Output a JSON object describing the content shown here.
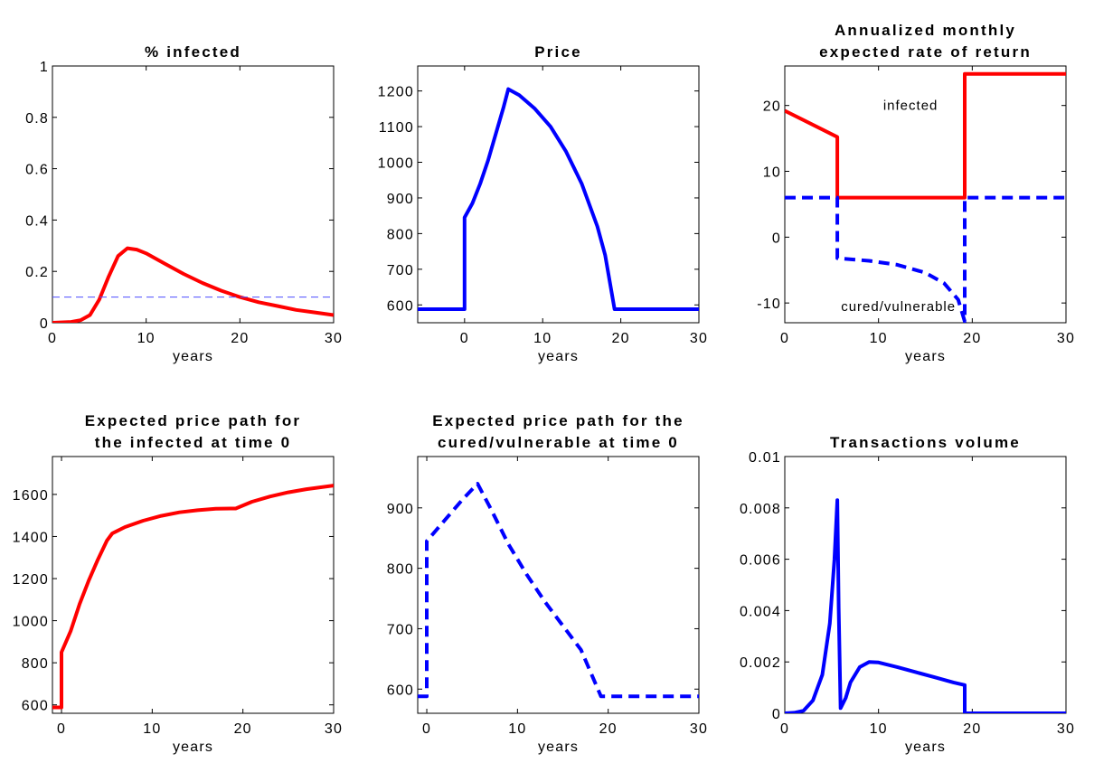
{
  "chart_data": [
    {
      "type": "line",
      "title": [
        "% infected"
      ],
      "xlabel": "years",
      "ylabel": "",
      "xlim": [
        0,
        30
      ],
      "ylim": [
        0,
        1
      ],
      "xticks": [
        "0",
        "10",
        "20",
        "30"
      ],
      "yticks": [
        "0",
        "0.2",
        "0.4",
        "0.6",
        "0.8",
        "1"
      ],
      "xtick_values": [
        0,
        10,
        20,
        30
      ],
      "ytick_values": [
        0,
        0.2,
        0.4,
        0.6,
        0.8,
        1
      ],
      "series": [
        {
          "color": "#ff0000",
          "style": "solid",
          "width": "thick",
          "points": [
            [
              0,
              0
            ],
            [
              2,
              0.003
            ],
            [
              3,
              0.01
            ],
            [
              4,
              0.03
            ],
            [
              5,
              0.09
            ],
            [
              6,
              0.18
            ],
            [
              7,
              0.26
            ],
            [
              8,
              0.29
            ],
            [
              9,
              0.285
            ],
            [
              10,
              0.27
            ],
            [
              12,
              0.23
            ],
            [
              14,
              0.19
            ],
            [
              16,
              0.155
            ],
            [
              18,
              0.125
            ],
            [
              20,
              0.1
            ],
            [
              22,
              0.08
            ],
            [
              24,
              0.065
            ],
            [
              26,
              0.05
            ],
            [
              28,
              0.04
            ],
            [
              30,
              0.03
            ]
          ]
        },
        {
          "color": "#4d4dff",
          "style": "dashed",
          "width": "thin",
          "points": [
            [
              0,
              0.1
            ],
            [
              30,
              0.1
            ]
          ]
        }
      ],
      "annotations": []
    },
    {
      "type": "line",
      "title": [
        "Price"
      ],
      "xlabel": "years",
      "ylabel": "",
      "xlim": [
        -6,
        30
      ],
      "ylim": [
        550,
        1270
      ],
      "xticks": [
        "0",
        "10",
        "20",
        "30"
      ],
      "yticks": [
        "600",
        "700",
        "800",
        "900",
        "1000",
        "1100",
        "1200"
      ],
      "xtick_values": [
        0,
        10,
        20,
        30
      ],
      "ytick_values": [
        600,
        700,
        800,
        900,
        1000,
        1100,
        1200
      ],
      "series": [
        {
          "color": "#0000ff",
          "style": "solid",
          "width": "thick",
          "points": [
            [
              -6,
              588
            ],
            [
              0,
              588
            ],
            [
              0,
              845
            ],
            [
              1,
              885
            ],
            [
              2,
              940
            ],
            [
              3,
              1005
            ],
            [
              4,
              1080
            ],
            [
              5,
              1155
            ],
            [
              5.6,
              1205
            ],
            [
              7,
              1188
            ],
            [
              9,
              1150
            ],
            [
              11,
              1100
            ],
            [
              13,
              1030
            ],
            [
              15,
              940
            ],
            [
              17,
              820
            ],
            [
              18,
              740
            ],
            [
              19.2,
              588
            ],
            [
              30,
              588
            ]
          ]
        }
      ],
      "annotations": []
    },
    {
      "type": "line",
      "title": [
        "Annualized monthly",
        "expected rate of return"
      ],
      "xlabel": "years",
      "ylabel": "",
      "xlim": [
        0,
        30
      ],
      "ylim": [
        -13,
        26
      ],
      "xticks": [
        "0",
        "10",
        "20",
        "30"
      ],
      "yticks": [
        "-10",
        "0",
        "10",
        "20"
      ],
      "xtick_values": [
        0,
        10,
        20,
        30
      ],
      "ytick_values": [
        -10,
        0,
        10,
        20
      ],
      "series": [
        {
          "color": "#ff0000",
          "style": "solid",
          "width": "thick",
          "points": [
            [
              0,
              19.2
            ],
            [
              5.6,
              15.2
            ],
            [
              5.6,
              6
            ],
            [
              19.2,
              6
            ],
            [
              19.2,
              24.8
            ],
            [
              30,
              24.8
            ]
          ]
        },
        {
          "color": "#0000ff",
          "style": "dashed",
          "width": "thick",
          "points": [
            [
              0,
              6
            ],
            [
              5.6,
              6
            ],
            [
              5.6,
              -3.2
            ],
            [
              9,
              -3.6
            ],
            [
              12,
              -4.2
            ],
            [
              15,
              -5.4
            ],
            [
              17,
              -7
            ],
            [
              18.5,
              -9.5
            ],
            [
              19.2,
              -12.8
            ],
            [
              19.2,
              6
            ],
            [
              30,
              6
            ]
          ]
        }
      ],
      "annotations": [
        {
          "text": "infected",
          "x": 10.5,
          "y": 20
        },
        {
          "text": "cured/vulnerable",
          "x": 6,
          "y": -10.5
        }
      ]
    },
    {
      "type": "line",
      "title": [
        "Expected price path for",
        "the infected at time 0"
      ],
      "xlabel": "years",
      "ylabel": "",
      "xlim": [
        -1,
        30
      ],
      "ylim": [
        560,
        1780
      ],
      "xticks": [
        "0",
        "10",
        "20",
        "30"
      ],
      "yticks": [
        "600",
        "800",
        "1000",
        "1200",
        "1400",
        "1600"
      ],
      "xtick_values": [
        0,
        10,
        20,
        30
      ],
      "ytick_values": [
        600,
        800,
        1000,
        1200,
        1400,
        1600
      ],
      "series": [
        {
          "color": "#ff0000",
          "style": "solid",
          "width": "thick",
          "points": [
            [
              -1,
              588
            ],
            [
              0,
              588
            ],
            [
              0,
              850
            ],
            [
              1,
              950
            ],
            [
              2,
              1080
            ],
            [
              3,
              1190
            ],
            [
              4,
              1290
            ],
            [
              5,
              1380
            ],
            [
              5.6,
              1415
            ],
            [
              7,
              1445
            ],
            [
              9,
              1475
            ],
            [
              11,
              1498
            ],
            [
              13,
              1515
            ],
            [
              15,
              1525
            ],
            [
              17,
              1532
            ],
            [
              19.2,
              1533
            ],
            [
              21,
              1565
            ],
            [
              23,
              1590
            ],
            [
              25,
              1610
            ],
            [
              27,
              1625
            ],
            [
              30,
              1642
            ]
          ]
        }
      ],
      "annotations": []
    },
    {
      "type": "line",
      "title": [
        "Expected price path for the",
        "cured/vulnerable at time 0"
      ],
      "xlabel": "years",
      "ylabel": "",
      "xlim": [
        -1,
        30
      ],
      "ylim": [
        560,
        985
      ],
      "xticks": [
        "0",
        "10",
        "20",
        "30"
      ],
      "yticks": [
        "600",
        "700",
        "800",
        "900"
      ],
      "xtick_values": [
        0,
        10,
        20,
        30
      ],
      "ytick_values": [
        600,
        700,
        800,
        900
      ],
      "series": [
        {
          "color": "#0000ff",
          "style": "dashed",
          "width": "thick",
          "points": [
            [
              -1,
              588
            ],
            [
              0,
              588
            ],
            [
              0,
              845
            ],
            [
              2,
              880
            ],
            [
              4,
              915
            ],
            [
              5.6,
              940
            ],
            [
              7,
              900
            ],
            [
              9,
              840
            ],
            [
              11,
              790
            ],
            [
              13,
              745
            ],
            [
              15,
              705
            ],
            [
              17,
              665
            ],
            [
              19.2,
              588
            ],
            [
              30,
              588
            ]
          ]
        }
      ],
      "annotations": []
    },
    {
      "type": "line",
      "title": [
        "Transactions volume"
      ],
      "xlabel": "years",
      "ylabel": "",
      "xlim": [
        0,
        30
      ],
      "ylim": [
        0,
        0.01
      ],
      "xticks": [
        "0",
        "10",
        "20",
        "30"
      ],
      "yticks": [
        "0",
        "0.002",
        "0.004",
        "0.006",
        "0.008",
        "0.01"
      ],
      "xtick_values": [
        0,
        10,
        20,
        30
      ],
      "ytick_values": [
        0,
        0.002,
        0.004,
        0.006,
        0.008,
        0.01
      ],
      "series": [
        {
          "color": "#0000ff",
          "style": "solid",
          "width": "thick",
          "points": [
            [
              0,
              0
            ],
            [
              1,
              2e-05
            ],
            [
              2,
              0.0001
            ],
            [
              3,
              0.0005
            ],
            [
              4,
              0.0015
            ],
            [
              4.8,
              0.0035
            ],
            [
              5.3,
              0.006
            ],
            [
              5.6,
              0.0083
            ],
            [
              5.75,
              0.0041
            ],
            [
              5.95,
              0.0002
            ],
            [
              6.5,
              0.0006
            ],
            [
              7,
              0.0012
            ],
            [
              8,
              0.0018
            ],
            [
              9,
              0.002
            ],
            [
              10,
              0.00198
            ],
            [
              12,
              0.0018
            ],
            [
              14,
              0.0016
            ],
            [
              16,
              0.0014
            ],
            [
              18,
              0.0012
            ],
            [
              19.2,
              0.0011
            ],
            [
              19.2,
              0
            ],
            [
              30,
              0
            ]
          ]
        }
      ],
      "annotations": []
    }
  ]
}
